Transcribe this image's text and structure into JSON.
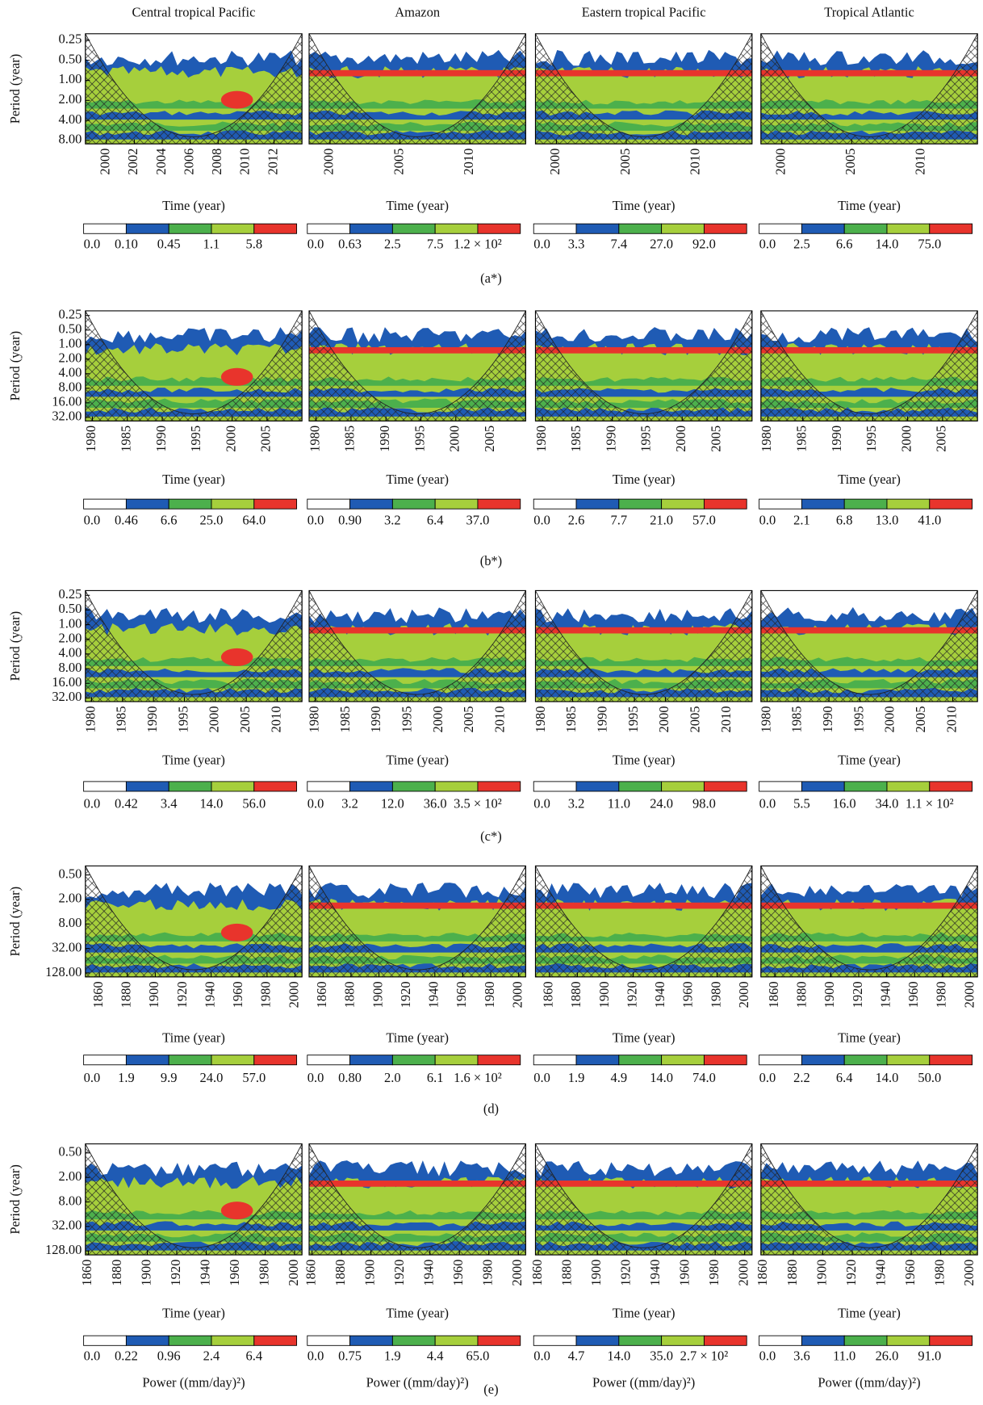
{
  "column_titles": [
    "Central tropical Pacific",
    "Amazon",
    "Eastern tropical Pacific",
    "Tropical Atlantic"
  ],
  "row_labels": [
    "(a*)",
    "(b*)",
    "(c*)",
    "(d)",
    "(e)"
  ],
  "colors": [
    "#ffffff",
    "#1f5bb4",
    "#4cb04c",
    "#a6cf3c",
    "#e8342c"
  ],
  "chart_data": [
    {
      "type": "wavelet",
      "ylabel": "Period (year)",
      "xlabel": "Time (year)",
      "log_y": true,
      "ylim": [
        0.2,
        9
      ],
      "yticks": [
        0.25,
        {
          "value": 0.5,
          "label": "0.50"
        },
        {
          "value": 1,
          "label": "1.00"
        },
        {
          "value": 2,
          "label": "2.00"
        },
        {
          "value": 4,
          "label": "4.00"
        },
        {
          "value": 8,
          "label": "8.00"
        }
      ],
      "xlim": [
        1998.5,
        2014
      ],
      "xticks": [
        2000,
        2002,
        2004,
        2006,
        2008,
        2010,
        2012
      ],
      "colorbar_labels": [
        "0.0",
        "0.10",
        "0.45",
        "1.1",
        "5.8"
      ]
    },
    {
      "type": "wavelet",
      "xlabel": "Time (year)",
      "log_y": true,
      "ylim": [
        0.2,
        9
      ],
      "xlim": [
        1998.5,
        2014
      ],
      "xticks": [
        2000,
        2005,
        2010
      ],
      "colorbar_labels": [
        "0.0",
        "0.63",
        "2.5",
        "7.5",
        "1.2 × 10²"
      ]
    },
    {
      "type": "wavelet",
      "xlabel": "Time (year)",
      "log_y": true,
      "ylim": [
        0.2,
        9
      ],
      "xlim": [
        1998.5,
        2014
      ],
      "xticks": [
        2000,
        2005,
        2010
      ],
      "colorbar_labels": [
        "0.0",
        "3.3",
        "7.4",
        "27.0",
        "92.0"
      ]
    },
    {
      "type": "wavelet",
      "xlabel": "Time (year)",
      "log_y": true,
      "ylim": [
        0.2,
        9
      ],
      "xlim": [
        1998.5,
        2014
      ],
      "xticks": [
        2000,
        2005,
        2010
      ],
      "colorbar_labels": [
        "0.0",
        "2.5",
        "6.6",
        "14.0",
        "75.0"
      ]
    },
    {
      "type": "wavelet",
      "ylabel": "Period (year)",
      "xlabel": "Time (year)",
      "log_y": true,
      "ylim": [
        0.2,
        38
      ],
      "yticks": [
        0.25,
        {
          "value": 0.5,
          "label": "0.50"
        },
        {
          "value": 1,
          "label": "1.00"
        },
        {
          "value": 2,
          "label": "2.00"
        },
        {
          "value": 4,
          "label": "4.00"
        },
        {
          "value": 8,
          "label": "8.00"
        },
        {
          "value": 16,
          "label": "16.00"
        },
        {
          "value": 32,
          "label": "32.00"
        }
      ],
      "xlim": [
        1979,
        2010
      ],
      "xticks": [
        1980,
        1985,
        1990,
        1995,
        2000,
        2005
      ],
      "colorbar_labels": [
        "0.0",
        "0.46",
        "6.6",
        "25.0",
        "64.0"
      ]
    },
    {
      "type": "wavelet",
      "xlabel": "Time (year)",
      "log_y": true,
      "ylim": [
        0.2,
        38
      ],
      "xlim": [
        1979,
        2010
      ],
      "xticks": [
        1980,
        1985,
        1990,
        1995,
        2000,
        2005
      ],
      "colorbar_labels": [
        "0.0",
        "0.90",
        "3.2",
        "6.4",
        "37.0"
      ]
    },
    {
      "type": "wavelet",
      "xlabel": "Time (year)",
      "log_y": true,
      "ylim": [
        0.2,
        38
      ],
      "xlim": [
        1979,
        2010
      ],
      "xticks": [
        1980,
        1985,
        1990,
        1995,
        2000,
        2005
      ],
      "colorbar_labels": [
        "0.0",
        "2.6",
        "7.7",
        "21.0",
        "57.0"
      ]
    },
    {
      "type": "wavelet",
      "xlabel": "Time (year)",
      "log_y": true,
      "ylim": [
        0.2,
        38
      ],
      "xlim": [
        1979,
        2010
      ],
      "xticks": [
        1980,
        1985,
        1990,
        1995,
        2000,
        2005
      ],
      "colorbar_labels": [
        "0.0",
        "2.1",
        "6.8",
        "13.0",
        "41.0"
      ]
    },
    {
      "type": "wavelet",
      "ylabel": "Period (year)",
      "xlabel": "Time (year)",
      "log_y": true,
      "ylim": [
        0.2,
        38
      ],
      "yticks": [
        0.25,
        {
          "value": 0.5,
          "label": "0.50"
        },
        {
          "value": 1,
          "label": "1.00"
        },
        {
          "value": 2,
          "label": "2.00"
        },
        {
          "value": 4,
          "label": "4.00"
        },
        {
          "value": 8,
          "label": "8.00"
        },
        {
          "value": 16,
          "label": "16.00"
        },
        {
          "value": 32,
          "label": "32.00"
        }
      ],
      "xlim": [
        1979,
        2014
      ],
      "xticks": [
        1980,
        1985,
        1990,
        1995,
        2000,
        2005,
        2010
      ],
      "colorbar_labels": [
        "0.0",
        "0.42",
        "3.4",
        "14.0",
        "56.0"
      ]
    },
    {
      "type": "wavelet",
      "xlabel": "Time (year)",
      "log_y": true,
      "ylim": [
        0.2,
        38
      ],
      "xlim": [
        1979,
        2014
      ],
      "xticks": [
        1980,
        1985,
        1990,
        1995,
        2000,
        2005,
        2010
      ],
      "colorbar_labels": [
        "0.0",
        "3.2",
        "12.0",
        "36.0",
        "3.5 × 10²"
      ]
    },
    {
      "type": "wavelet",
      "xlabel": "Time (year)",
      "log_y": true,
      "ylim": [
        0.2,
        38
      ],
      "xlim": [
        1979,
        2014
      ],
      "xticks": [
        1980,
        1985,
        1990,
        1995,
        2000,
        2005,
        2010
      ],
      "colorbar_labels": [
        "0.0",
        "3.2",
        "11.0",
        "24.0",
        "98.0"
      ]
    },
    {
      "type": "wavelet",
      "xlabel": "Time (year)",
      "log_y": true,
      "ylim": [
        0.2,
        38
      ],
      "xlim": [
        1979,
        2014
      ],
      "xticks": [
        1980,
        1985,
        1990,
        1995,
        2000,
        2005,
        2010
      ],
      "colorbar_labels": [
        "0.0",
        "5.5",
        "16.0",
        "34.0",
        "1.1 × 10²"
      ]
    },
    {
      "type": "wavelet",
      "ylabel": "Period (year)",
      "xlabel": "Time (year)",
      "log_y": true,
      "ylim": [
        0.3,
        160
      ],
      "yticks": [
        {
          "value": 0.5,
          "label": "0.50"
        },
        {
          "value": 2,
          "label": "2.00"
        },
        {
          "value": 8,
          "label": "8.00"
        },
        {
          "value": 32,
          "label": "32.00"
        },
        {
          "value": 128,
          "label": "128.00"
        }
      ],
      "xlim": [
        1850,
        2005
      ],
      "xticks": [
        1860,
        1880,
        1900,
        1920,
        1940,
        1960,
        1980,
        2000
      ],
      "colorbar_labels": [
        "0.0",
        "1.9",
        "9.9",
        "24.0",
        "57.0"
      ]
    },
    {
      "type": "wavelet",
      "xlabel": "Time (year)",
      "log_y": true,
      "ylim": [
        0.3,
        160
      ],
      "xlim": [
        1850,
        2005
      ],
      "xticks": [
        1860,
        1880,
        1900,
        1920,
        1940,
        1960,
        1980,
        2000
      ],
      "colorbar_labels": [
        "0.0",
        "0.80",
        "2.0",
        "6.1",
        "1.6 × 10²"
      ]
    },
    {
      "type": "wavelet",
      "xlabel": "Time (year)",
      "log_y": true,
      "ylim": [
        0.3,
        160
      ],
      "xlim": [
        1850,
        2005
      ],
      "xticks": [
        1860,
        1880,
        1900,
        1920,
        1940,
        1960,
        1980,
        2000
      ],
      "colorbar_labels": [
        "0.0",
        "1.9",
        "4.9",
        "14.0",
        "74.0"
      ]
    },
    {
      "type": "wavelet",
      "xlabel": "Time (year)",
      "log_y": true,
      "ylim": [
        0.3,
        160
      ],
      "xlim": [
        1850,
        2005
      ],
      "xticks": [
        1860,
        1880,
        1900,
        1920,
        1940,
        1960,
        1980,
        2000
      ],
      "colorbar_labels": [
        "0.0",
        "2.2",
        "6.4",
        "14.0",
        "50.0"
      ]
    },
    {
      "type": "wavelet",
      "ylabel": "Period (year)",
      "xlabel": "Time (year)",
      "colorbar_title": "Power ((mm/day)²)",
      "log_y": true,
      "ylim": [
        0.3,
        160
      ],
      "yticks": [
        {
          "value": 0.5,
          "label": "0.50"
        },
        {
          "value": 2,
          "label": "2.00"
        },
        {
          "value": 8,
          "label": "8.00"
        },
        {
          "value": 32,
          "label": "32.00"
        },
        {
          "value": 128,
          "label": "128.00"
        }
      ],
      "xlim": [
        1858,
        2005
      ],
      "xticks": [
        1860,
        1880,
        1900,
        1920,
        1940,
        1960,
        1980,
        2000
      ],
      "colorbar_labels": [
        "0.0",
        "0.22",
        "0.96",
        "2.4",
        "6.4"
      ]
    },
    {
      "type": "wavelet",
      "xlabel": "Time (year)",
      "colorbar_title": "Power ((mm/day)²)",
      "log_y": true,
      "ylim": [
        0.3,
        160
      ],
      "xlim": [
        1858,
        2005
      ],
      "xticks": [
        1860,
        1880,
        1900,
        1920,
        1940,
        1960,
        1980,
        2000
      ],
      "colorbar_labels": [
        "0.0",
        "0.75",
        "1.9",
        "4.4",
        "65.0"
      ]
    },
    {
      "type": "wavelet",
      "xlabel": "Time (year)",
      "colorbar_title": "Power ((mm/day)²)",
      "log_y": true,
      "ylim": [
        0.3,
        160
      ],
      "xlim": [
        1858,
        2005
      ],
      "xticks": [
        1860,
        1880,
        1900,
        1920,
        1940,
        1960,
        1980,
        2000
      ],
      "colorbar_labels": [
        "0.0",
        "4.7",
        "14.0",
        "35.0",
        "2.7 × 10²"
      ]
    },
    {
      "type": "wavelet",
      "xlabel": "Time (year)",
      "colorbar_title": "Power ((mm/day)²)",
      "log_y": true,
      "ylim": [
        0.3,
        160
      ],
      "xlim": [
        1858,
        2005
      ],
      "xticks": [
        1860,
        1880,
        1900,
        1920,
        1940,
        1960,
        1980,
        2000
      ],
      "colorbar_labels": [
        "0.0",
        "3.6",
        "11.0",
        "26.0",
        "91.0"
      ]
    }
  ]
}
